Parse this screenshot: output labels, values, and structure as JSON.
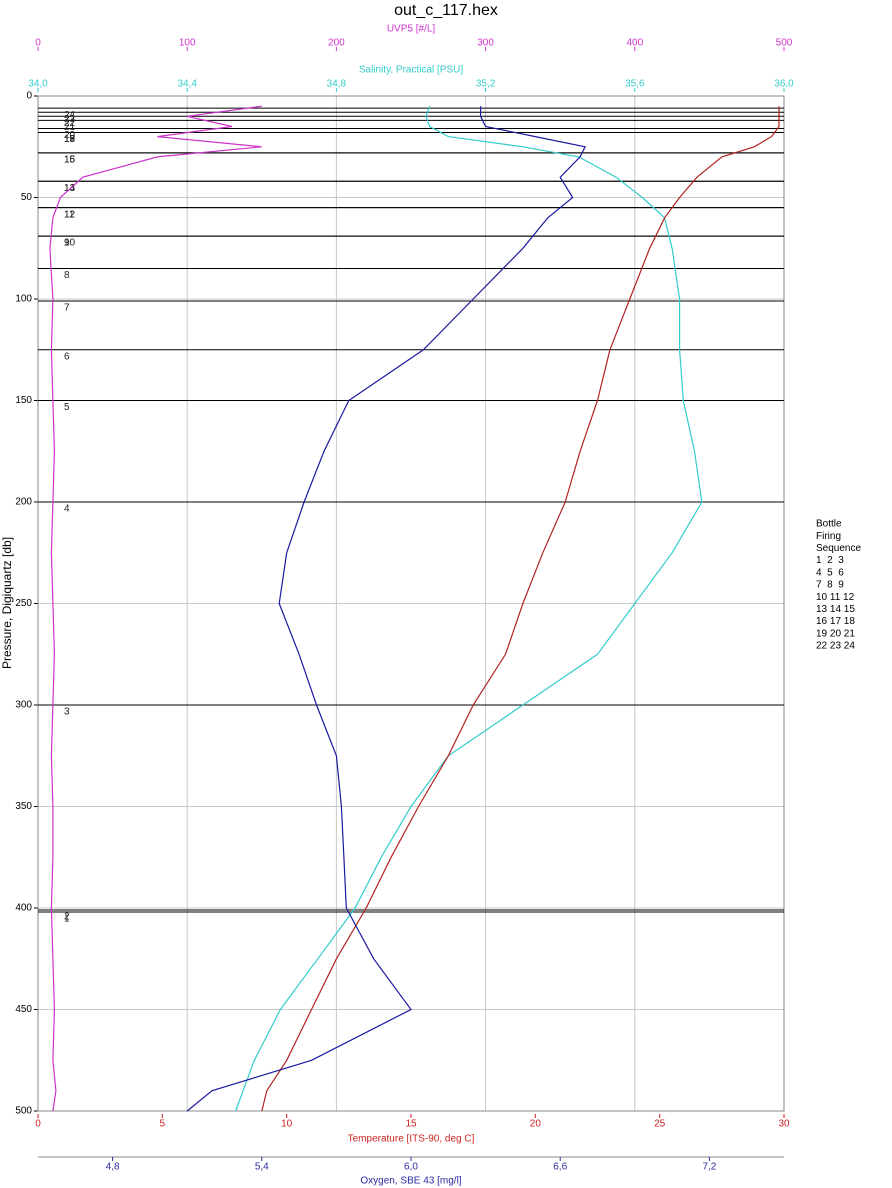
{
  "chart_data": {
    "type": "profile",
    "title": "out_c_117.hex",
    "y_label": "Pressure, Digiquartz [db]",
    "ylim": [
      0,
      500
    ],
    "yticks": [
      0,
      50,
      100,
      150,
      200,
      250,
      300,
      350,
      400,
      450,
      500
    ],
    "grid": true,
    "pressure": [
      5,
      10,
      15,
      20,
      25,
      30,
      40,
      50,
      60,
      75,
      100,
      125,
      150,
      175,
      200,
      225,
      250,
      275,
      300,
      325,
      350,
      375,
      400,
      425,
      450,
      475,
      490,
      500
    ],
    "axes": [
      {
        "name": "UVP5 [#/L]",
        "position": "top",
        "color": "#cc33cc",
        "lim": [
          0,
          500
        ],
        "ticks": [
          0,
          100,
          200,
          300,
          400,
          500
        ]
      },
      {
        "name": "Salinity, Practical [PSU]",
        "position": "top",
        "color": "#33cccc",
        "lim": [
          34.0,
          36.0
        ],
        "ticks": [
          {
            "value": 34.0,
            "label": "34,0"
          },
          {
            "value": 34.4,
            "label": "34,4"
          },
          {
            "value": 34.8,
            "label": "34,8"
          },
          {
            "value": 35.2,
            "label": "35,2"
          },
          {
            "value": 35.6,
            "label": "35,6"
          },
          {
            "value": 36.0,
            "label": "36,0"
          }
        ]
      },
      {
        "name": "Temperature [ITS-90, deg C]",
        "position": "bottom",
        "color": "#cc2222",
        "lim": [
          0,
          30
        ],
        "ticks": [
          0,
          5,
          10,
          15,
          20,
          25,
          30
        ]
      },
      {
        "name": "Oxygen, SBE 43 [mg/l]",
        "position": "bottom",
        "color": "#2a2aa0",
        "lim": [
          4.5,
          7.5
        ],
        "ticks": [
          {
            "value": 4.8,
            "label": "4,8"
          },
          {
            "value": 5.4,
            "label": "5,4"
          },
          {
            "value": 6.0,
            "label": "6,0"
          },
          {
            "value": 6.6,
            "label": "6,6"
          },
          {
            "value": 7.2,
            "label": "7,2"
          }
        ]
      }
    ],
    "series": [
      {
        "name": "UVP5 [#/L]",
        "axis": 0,
        "color": "#cc33cc",
        "values": [
          150,
          100,
          130,
          80,
          150,
          80,
          30,
          15,
          10,
          8,
          10,
          9,
          10,
          11,
          10,
          9,
          10,
          11,
          10,
          9,
          10,
          10,
          9,
          10,
          11,
          10,
          12,
          10
        ]
      },
      {
        "name": "Salinity, Practical [PSU]",
        "axis": 1,
        "color": "#33cccc",
        "values": [
          35.05,
          35.04,
          35.05,
          35.1,
          35.3,
          35.45,
          35.55,
          35.62,
          35.68,
          35.7,
          35.72,
          35.72,
          35.73,
          35.76,
          35.78,
          35.7,
          35.6,
          35.5,
          35.3,
          35.1,
          35.0,
          34.92,
          34.85,
          34.75,
          34.65,
          34.58,
          34.55,
          34.53
        ]
      },
      {
        "name": "Temperature [ITS-90, deg C]",
        "axis": 2,
        "color": "#b22222",
        "values": [
          29.8,
          29.8,
          29.8,
          29.5,
          28.8,
          27.5,
          26.5,
          25.8,
          25.2,
          24.6,
          23.8,
          23,
          22.5,
          21.8,
          21.2,
          20.3,
          19.5,
          18.8,
          17.5,
          16.5,
          15.3,
          14.2,
          13.2,
          12,
          11,
          10,
          9.2,
          9.0
        ]
      },
      {
        "name": "Oxygen, SBE 43 [mg/l]",
        "axis": 3,
        "color": "#1a1aa0",
        "values": [
          6.28,
          6.28,
          6.3,
          6.5,
          6.7,
          6.68,
          6.6,
          6.65,
          6.55,
          6.45,
          6.25,
          6.05,
          5.75,
          5.65,
          5.57,
          5.5,
          5.47,
          5.55,
          5.62,
          5.7,
          5.72,
          5.73,
          5.74,
          5.85,
          6.0,
          5.6,
          5.2,
          5.1
        ]
      }
    ],
    "bottles": [
      {
        "label": "1",
        "pressure": 402
      },
      {
        "label": "2",
        "pressure": 401
      },
      {
        "label": "3",
        "pressure": 300
      },
      {
        "label": "4",
        "pressure": 200
      },
      {
        "label": "5",
        "pressure": 150
      },
      {
        "label": "6",
        "pressure": 125
      },
      {
        "label": "7",
        "pressure": 101
      },
      {
        "label": "8",
        "pressure": 85
      },
      {
        "label": "9",
        "pressure": 69
      },
      {
        "label": "10",
        "pressure": 69
      },
      {
        "label": "11",
        "pressure": 55
      },
      {
        "label": "12",
        "pressure": 55
      },
      {
        "label": "13",
        "pressure": 42
      },
      {
        "label": "14",
        "pressure": 42
      },
      {
        "label": "15",
        "pressure": 28
      },
      {
        "label": "16",
        "pressure": 28
      },
      {
        "label": "17",
        "pressure": 18
      },
      {
        "label": "18",
        "pressure": 18
      },
      {
        "label": "19",
        "pressure": 18
      },
      {
        "label": "20",
        "pressure": 16
      },
      {
        "label": "21",
        "pressure": 12
      },
      {
        "label": "22",
        "pressure": 10
      },
      {
        "label": "23",
        "pressure": 8
      },
      {
        "label": "24",
        "pressure": 6
      }
    ],
    "legend": [
      "Bottle",
      "Firing",
      "Sequence",
      "1  2  3",
      "4  5  6",
      "7  8  9",
      "10 11 12",
      "13 14 15",
      "16 17 18",
      "19 20 21",
      "22 23 24"
    ]
  }
}
